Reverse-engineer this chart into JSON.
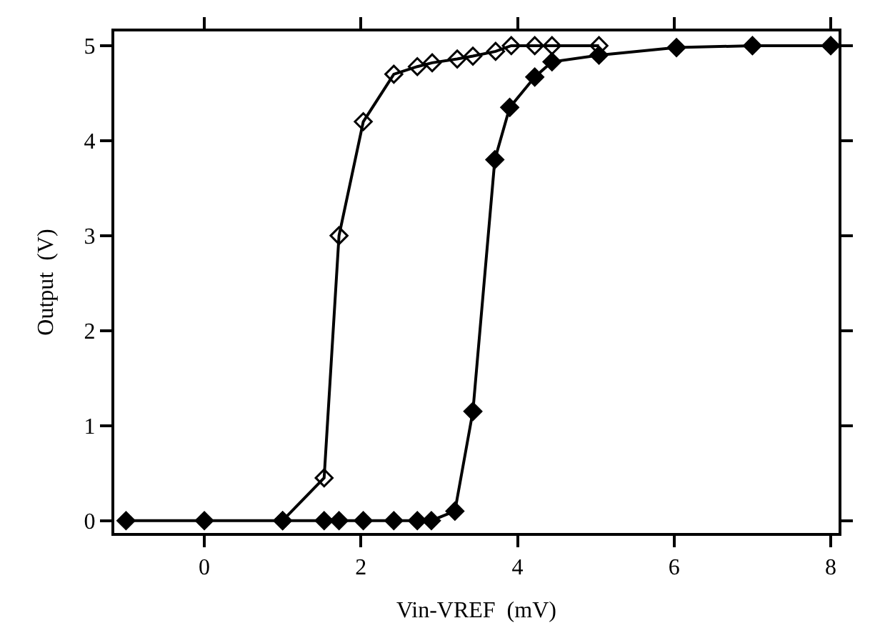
{
  "chart_data": {
    "type": "line",
    "xlabel": "Vin-VREF  (mV)",
    "ylabel": "Output  (V)",
    "xlim": [
      -1.15,
      8.1
    ],
    "xticks": [
      0,
      2,
      4,
      6,
      8
    ],
    "ylim": [
      -0.13,
      5.15
    ],
    "yticks": [
      0,
      1,
      2,
      3,
      4,
      5
    ],
    "grid": false,
    "line_style": "solid",
    "series": [
      {
        "color": "#000000",
        "marker": "diamond-open",
        "x": [
          1.0,
          1.53,
          1.72,
          2.03,
          2.42,
          2.72,
          2.91,
          3.23,
          3.43,
          3.72,
          3.92,
          4.22,
          4.44,
          5.04
        ],
        "values": [
          0,
          0.45,
          3.0,
          4.2,
          4.7,
          4.78,
          4.82,
          4.86,
          4.89,
          4.94,
          5.0,
          5.0,
          5.0,
          5.0
        ]
      },
      {
        "color": "#000000",
        "marker": "diamond",
        "x": [
          -1,
          0,
          1,
          1.53,
          1.72,
          2.03,
          2.42,
          2.72,
          2.9,
          3.2,
          3.43,
          3.71,
          3.9,
          4.22,
          4.44,
          5.04,
          6.03,
          7,
          8
        ],
        "values": [
          0,
          0,
          0,
          0,
          0,
          0,
          0,
          0,
          0,
          0.1,
          1.15,
          3.8,
          4.35,
          4.67,
          4.83,
          4.9,
          4.98,
          5.0,
          5.0
        ]
      }
    ]
  }
}
